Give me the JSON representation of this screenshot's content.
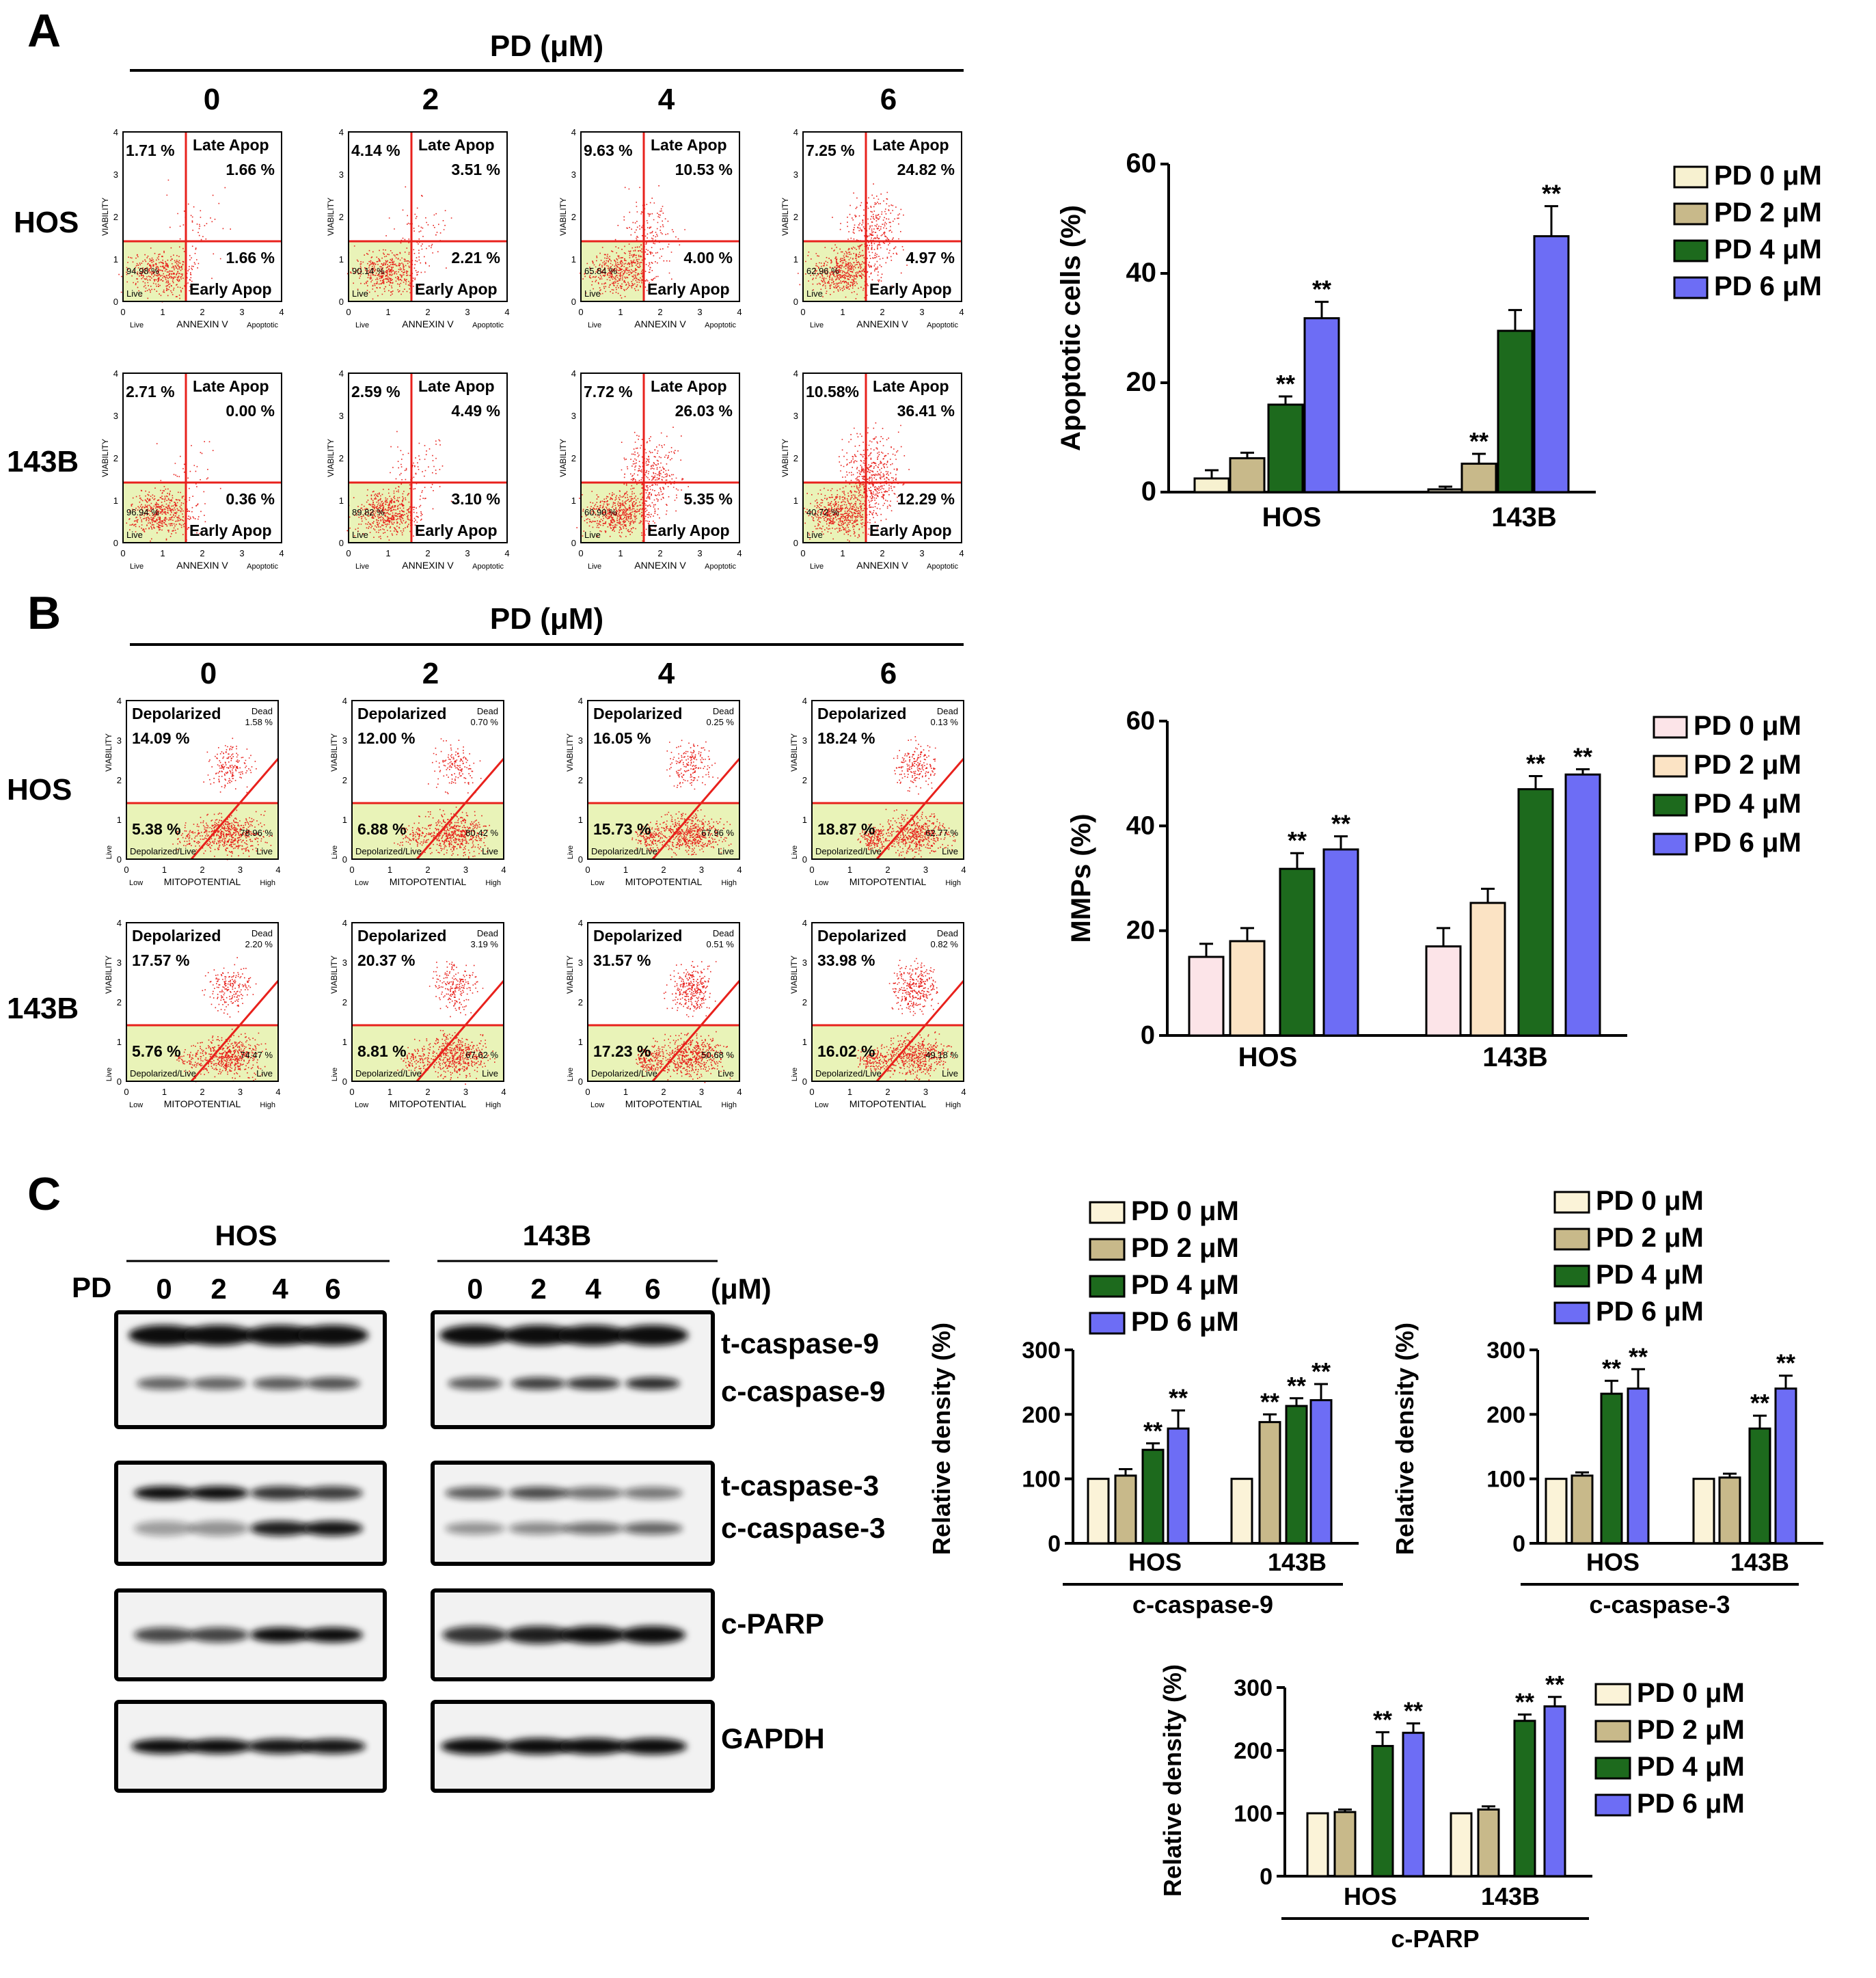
{
  "panel_labels": [
    "A",
    "B",
    "C"
  ],
  "pd_header": "PD (μM)",
  "doses": [
    "0",
    "2",
    "4",
    "6"
  ],
  "cell_lines": [
    "HOS",
    "143B"
  ],
  "colors": {
    "pd0_A": "#f7f1d0",
    "pd2_A": "#c8b98a",
    "pd4": "#1d6a1d",
    "pd6": "#6d6df5",
    "pd0_B": "#fce4e8",
    "pd2_B": "#fbe3c4",
    "pd0_C": "#fbf3d8",
    "pd2_C": "#c8b98a",
    "flow_dot": "#e8211c",
    "flow_gate": "#e8211c",
    "flow_live": "#e9f3b8"
  },
  "panel_A": {
    "axis_y": "VIABILITY",
    "axis_x": "ANNEXIN V",
    "x_left": "Live",
    "x_right": "Apoptotic",
    "late_label": "Late Apop",
    "early_label": "Early Apop",
    "live_label": "Live",
    "plots": [
      {
        "dead": "1.71 %",
        "late": "1.66 %",
        "early": "1.66 %",
        "live": "94.98 %"
      },
      {
        "dead": "4.14 %",
        "late": "3.51 %",
        "early": "2.21 %",
        "live": "90.14 %"
      },
      {
        "dead": "9.63 %",
        "late": "10.53 %",
        "early": "4.00 %",
        "live": "65.84 %"
      },
      {
        "dead": "7.25 %",
        "late": "24.82 %",
        "early": "4.97 %",
        "live": "62.96 %"
      },
      {
        "dead": "2.71 %",
        "late": "0.00 %",
        "early": "0.36 %",
        "live": "96.94 %"
      },
      {
        "dead": "2.59 %",
        "late": "4.49 %",
        "early": "3.10 %",
        "live": "89.82 %"
      },
      {
        "dead": "7.72 %",
        "late": "26.03 %",
        "early": "5.35 %",
        "live": "60.90 %"
      },
      {
        "dead": "10.58%",
        "late": "36.41 %",
        "early": "12.29 %",
        "live": "40.72 %"
      }
    ]
  },
  "panel_B": {
    "axis_y": "VIABILITY",
    "axis_x": "MITOPOTENTIAL",
    "x_low": "Low",
    "x_high": "High",
    "y_low": "Live",
    "depol_label": "Depolarized",
    "dead_label": "Dead",
    "live_label": "Live",
    "depol_live_label": "Depolarized/Live",
    "plots": [
      {
        "depol": "14.09 %",
        "dead": "1.58 %",
        "depol_live": "5.38 %",
        "live": "78.96 %"
      },
      {
        "depol": "12.00 %",
        "dead": "0.70 %",
        "depol_live": "6.88 %",
        "live": "80.42 %"
      },
      {
        "depol": "16.05 %",
        "dead": "0.25 %",
        "depol_live": "15.73 %",
        "live": "67.96 %"
      },
      {
        "depol": "18.24 %",
        "dead": "0.13 %",
        "depol_live": "18.87 %",
        "live": "62.77 %"
      },
      {
        "depol": "17.57 %",
        "dead": "2.20 %",
        "depol_live": "5.76 %",
        "live": "74.47 %"
      },
      {
        "depol": "20.37 %",
        "dead": "3.19 %",
        "depol_live": "8.81 %",
        "live": "67.62 %"
      },
      {
        "depol": "31.57 %",
        "dead": "0.51 %",
        "depol_live": "17.23 %",
        "live": "50.68 %"
      },
      {
        "depol": "33.98 %",
        "dead": "0.82 %",
        "depol_live": "16.02 %",
        "live": "49.18 %"
      }
    ]
  },
  "panel_C": {
    "pd_label": "PD",
    "unit": "(μM)",
    "bands": [
      "t-caspase-9",
      "c-caspase-9",
      "t-caspase-3",
      "c-caspase-3",
      "c-PARP",
      "GAPDH"
    ]
  },
  "legend_items": [
    "PD 0 μM",
    "PD 2 μM",
    "PD 4 μM",
    "PD 6 μM"
  ],
  "chart_data": [
    {
      "id": "apoptosis",
      "type": "bar",
      "title": "",
      "xlabel": "",
      "ylabel": "Apoptotic cells (%)",
      "categories": [
        "HOS",
        "143B"
      ],
      "ylim": [
        0,
        60
      ],
      "yticks": [
        0,
        20,
        40,
        60
      ],
      "series": [
        {
          "name": "PD 0 μM",
          "values": [
            2.5,
            0.5
          ],
          "errors": [
            1.5,
            0.5
          ],
          "sig": [
            "",
            ""
          ]
        },
        {
          "name": "PD 2 μM",
          "values": [
            6.2,
            5.2
          ],
          "errors": [
            1.0,
            1.8
          ],
          "sig": [
            "",
            "**"
          ]
        },
        {
          "name": "PD 4 μM",
          "values": [
            16.0,
            29.5
          ],
          "errors": [
            1.5,
            3.8
          ],
          "sig": [
            "**",
            ""
          ]
        },
        {
          "name": "PD 6 μM",
          "values": [
            31.8,
            46.8
          ],
          "errors": [
            3.0,
            5.5
          ],
          "sig": [
            "**",
            "**"
          ]
        }
      ]
    },
    {
      "id": "mmp",
      "type": "bar",
      "title": "",
      "xlabel": "",
      "ylabel": "MMPs (%)",
      "categories": [
        "HOS",
        "143B"
      ],
      "ylim": [
        0,
        60
      ],
      "yticks": [
        0,
        20,
        40,
        60
      ],
      "series": [
        {
          "name": "PD 0 μM",
          "values": [
            15.0,
            17.0
          ],
          "errors": [
            2.5,
            3.5
          ],
          "sig": [
            "",
            ""
          ]
        },
        {
          "name": "PD 2 μM",
          "values": [
            18.0,
            25.3
          ],
          "errors": [
            2.5,
            2.7
          ],
          "sig": [
            "",
            ""
          ]
        },
        {
          "name": "PD 4 μM",
          "values": [
            31.8,
            47.0
          ],
          "errors": [
            3.0,
            2.5
          ],
          "sig": [
            "**",
            "**"
          ]
        },
        {
          "name": "PD 6 μM",
          "values": [
            35.5,
            49.8
          ],
          "errors": [
            2.5,
            1.0
          ],
          "sig": [
            "**",
            "**"
          ]
        }
      ]
    },
    {
      "id": "casp9",
      "type": "bar",
      "title": "c-caspase-9",
      "xlabel": "c-caspase-9",
      "ylabel": "Relative density (%)",
      "categories": [
        "HOS",
        "143B"
      ],
      "ylim": [
        0,
        300
      ],
      "yticks": [
        0,
        100,
        200,
        300
      ],
      "series": [
        {
          "name": "PD 0 μM",
          "values": [
            100,
            100
          ],
          "errors": [
            0,
            0
          ],
          "sig": [
            "",
            ""
          ]
        },
        {
          "name": "PD 2 μM",
          "values": [
            105,
            188
          ],
          "errors": [
            10,
            12
          ],
          "sig": [
            "",
            "**"
          ]
        },
        {
          "name": "PD 4 μM",
          "values": [
            145,
            213
          ],
          "errors": [
            10,
            12
          ],
          "sig": [
            "**",
            "**"
          ]
        },
        {
          "name": "PD 6 μM",
          "values": [
            178,
            222
          ],
          "errors": [
            28,
            25
          ],
          "sig": [
            "**",
            "**"
          ]
        }
      ]
    },
    {
      "id": "casp3",
      "type": "bar",
      "title": "c-caspase-3",
      "xlabel": "c-caspase-3",
      "ylabel": "Relative density (%)",
      "categories": [
        "HOS",
        "143B"
      ],
      "ylim": [
        0,
        300
      ],
      "yticks": [
        0,
        100,
        200,
        300
      ],
      "series": [
        {
          "name": "PD 0 μM",
          "values": [
            100,
            100
          ],
          "errors": [
            0,
            0
          ],
          "sig": [
            "",
            ""
          ]
        },
        {
          "name": "PD 2 μM",
          "values": [
            105,
            102
          ],
          "errors": [
            5,
            6
          ],
          "sig": [
            "",
            ""
          ]
        },
        {
          "name": "PD 4 μM",
          "values": [
            232,
            178
          ],
          "errors": [
            20,
            20
          ],
          "sig": [
            "**",
            "**"
          ]
        },
        {
          "name": "PD 6 μM",
          "values": [
            240,
            240
          ],
          "errors": [
            30,
            20
          ],
          "sig": [
            "**",
            "**"
          ]
        }
      ]
    },
    {
      "id": "parp",
      "type": "bar",
      "title": "c-PARP",
      "xlabel": "c-PARP",
      "ylabel": "Relative density (%)",
      "categories": [
        "HOS",
        "143B"
      ],
      "ylim": [
        0,
        300
      ],
      "yticks": [
        0,
        100,
        200,
        300
      ],
      "series": [
        {
          "name": "PD 0 μM",
          "values": [
            100,
            100
          ],
          "errors": [
            0,
            0
          ],
          "sig": [
            "",
            ""
          ]
        },
        {
          "name": "PD 2 μM",
          "values": [
            102,
            106
          ],
          "errors": [
            4,
            5
          ],
          "sig": [
            "",
            ""
          ]
        },
        {
          "name": "PD 4 μM",
          "values": [
            207,
            247
          ],
          "errors": [
            22,
            10
          ],
          "sig": [
            "**",
            "**"
          ]
        },
        {
          "name": "PD 6 μM",
          "values": [
            228,
            270
          ],
          "errors": [
            15,
            15
          ],
          "sig": [
            "**",
            "**"
          ]
        }
      ]
    }
  ]
}
